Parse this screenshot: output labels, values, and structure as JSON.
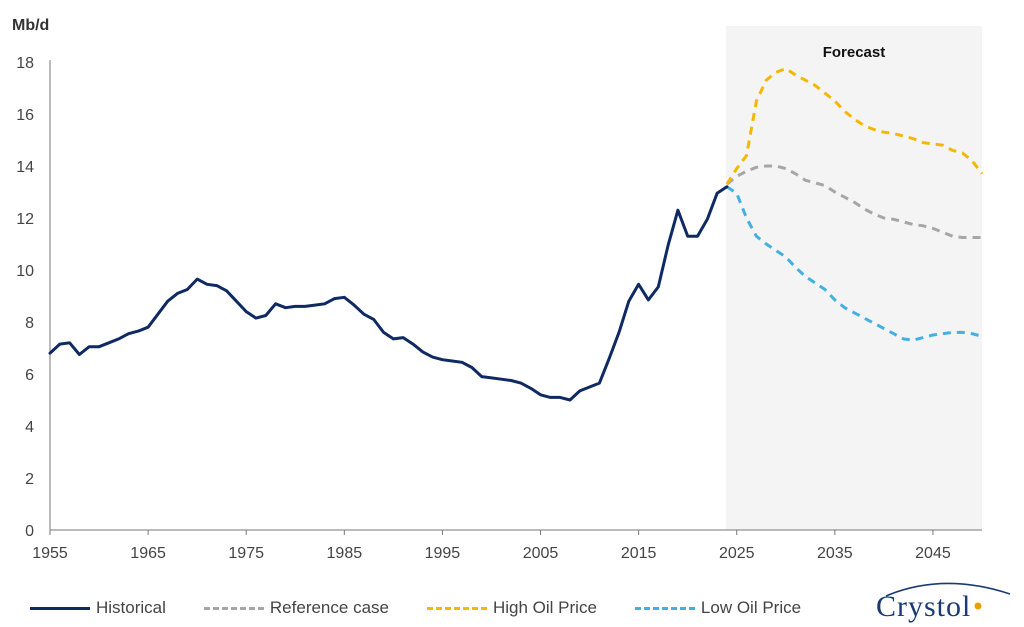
{
  "chart_data": {
    "type": "line",
    "unit_label": "Mb/d",
    "forecast_label": "Forecast",
    "forecast_start": 2024,
    "xlim": [
      1955,
      2050
    ],
    "ylim": [
      0,
      18
    ],
    "x_ticks": [
      "1955",
      "1965",
      "1975",
      "1985",
      "1995",
      "2005",
      "2015",
      "2025",
      "2035",
      "2045"
    ],
    "y_ticks": [
      "0",
      "2",
      "4",
      "6",
      "8",
      "10",
      "12",
      "14",
      "16",
      "18"
    ],
    "grid": false,
    "legend_position": "bottom",
    "series": [
      {
        "name": "Historical",
        "color": "#0f2a62",
        "dash": "solid",
        "x": [
          1955,
          1956,
          1957,
          1958,
          1959,
          1960,
          1961,
          1962,
          1963,
          1964,
          1965,
          1966,
          1967,
          1968,
          1969,
          1970,
          1971,
          1972,
          1973,
          1974,
          1975,
          1976,
          1977,
          1978,
          1979,
          1980,
          1981,
          1982,
          1983,
          1984,
          1985,
          1986,
          1987,
          1988,
          1989,
          1990,
          1991,
          1992,
          1993,
          1994,
          1995,
          1996,
          1997,
          1998,
          1999,
          2000,
          2001,
          2002,
          2003,
          2004,
          2005,
          2006,
          2007,
          2008,
          2009,
          2010,
          2011,
          2012,
          2013,
          2014,
          2015,
          2016,
          2017,
          2018,
          2019,
          2020,
          2021,
          2022,
          2023,
          2024
        ],
        "values": [
          6.8,
          7.15,
          7.2,
          6.75,
          7.05,
          7.05,
          7.2,
          7.35,
          7.55,
          7.65,
          7.8,
          8.3,
          8.8,
          9.1,
          9.25,
          9.65,
          9.45,
          9.4,
          9.2,
          8.8,
          8.4,
          8.15,
          8.25,
          8.7,
          8.55,
          8.6,
          8.6,
          8.65,
          8.7,
          8.9,
          8.95,
          8.65,
          8.3,
          8.1,
          7.6,
          7.35,
          7.4,
          7.15,
          6.85,
          6.65,
          6.55,
          6.5,
          6.45,
          6.25,
          5.9,
          5.85,
          5.8,
          5.75,
          5.65,
          5.45,
          5.2,
          5.1,
          5.1,
          5.0,
          5.35,
          5.5,
          5.65,
          6.6,
          7.6,
          8.8,
          9.45,
          8.85,
          9.35,
          10.95,
          12.3,
          11.3,
          11.3,
          11.95,
          12.95,
          13.2
        ]
      },
      {
        "name": "Reference case",
        "color": "#a6a6a6",
        "dash": "dashed",
        "x": [
          2024,
          2025,
          2026,
          2027,
          2028,
          2029,
          2030,
          2031,
          2032,
          2033,
          2034,
          2035,
          2036,
          2037,
          2038,
          2039,
          2040,
          2041,
          2042,
          2043,
          2044,
          2045,
          2046,
          2047,
          2048,
          2049,
          2050
        ],
        "values": [
          13.3,
          13.6,
          13.8,
          13.95,
          14.0,
          14.0,
          13.9,
          13.7,
          13.45,
          13.35,
          13.25,
          13.0,
          12.8,
          12.6,
          12.35,
          12.15,
          12.0,
          11.95,
          11.85,
          11.75,
          11.7,
          11.6,
          11.45,
          11.3,
          11.25,
          11.25,
          11.25
        ]
      },
      {
        "name": "High Oil Price",
        "color": "#f5b800",
        "dash": "dashed",
        "x": [
          2024,
          2025,
          2026,
          2027,
          2028,
          2029,
          2030,
          2031,
          2032,
          2033,
          2034,
          2035,
          2036,
          2037,
          2038,
          2039,
          2040,
          2041,
          2042,
          2043,
          2044,
          2045,
          2046,
          2047,
          2048,
          2049,
          2050
        ],
        "values": [
          13.3,
          13.9,
          14.4,
          16.5,
          17.3,
          17.6,
          17.75,
          17.5,
          17.3,
          17.1,
          16.8,
          16.5,
          16.1,
          15.8,
          15.55,
          15.4,
          15.3,
          15.25,
          15.15,
          15.05,
          14.9,
          14.85,
          14.8,
          14.6,
          14.5,
          14.2,
          13.7
        ]
      },
      {
        "name": "Low Oil Price",
        "color": "#42b0e0",
        "dash": "dashed",
        "x": [
          2024,
          2025,
          2026,
          2027,
          2028,
          2029,
          2030,
          2031,
          2032,
          2033,
          2034,
          2035,
          2036,
          2037,
          2038,
          2039,
          2040,
          2041,
          2042,
          2043,
          2044,
          2045,
          2046,
          2047,
          2048,
          2049,
          2050
        ],
        "values": [
          13.2,
          12.95,
          12.0,
          11.3,
          11.0,
          10.75,
          10.5,
          10.1,
          9.75,
          9.5,
          9.25,
          8.85,
          8.55,
          8.35,
          8.15,
          7.95,
          7.75,
          7.55,
          7.35,
          7.3,
          7.4,
          7.5,
          7.55,
          7.6,
          7.6,
          7.55,
          7.45
        ]
      }
    ]
  },
  "logo_text": "Crystol"
}
